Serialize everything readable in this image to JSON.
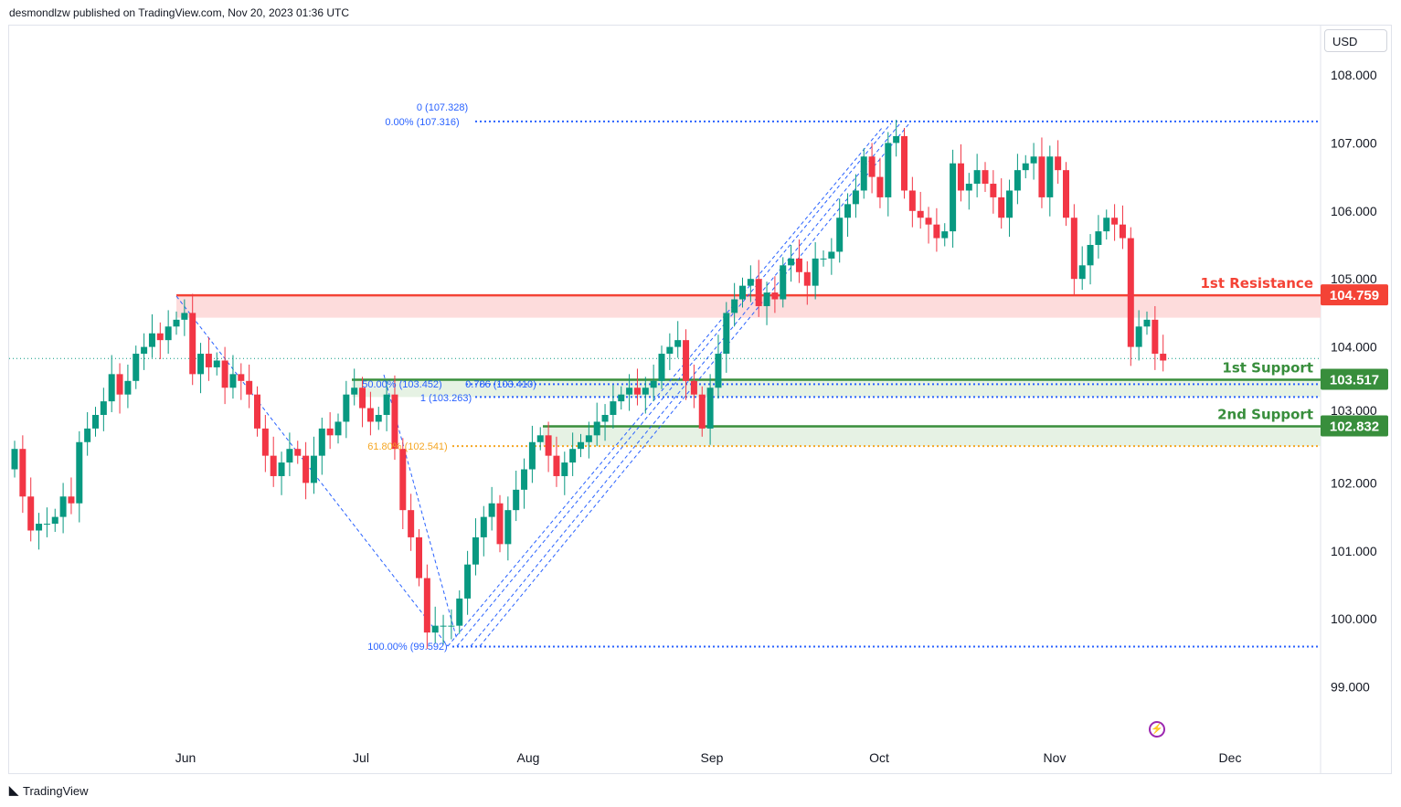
{
  "header": {
    "published": "desmondlzw published on TradingView.com, Nov 20, 2023 01:36 UTC"
  },
  "currency": "USD",
  "footer": {
    "brand": "TradingView"
  },
  "colors": {
    "up": "#089981",
    "down": "#f23645",
    "resistance": "#f44336",
    "support": "#388e3c",
    "fib": "#2962ff",
    "fib618": "#f5a623"
  },
  "chart_data": {
    "type": "candlestick",
    "title": "",
    "x_tick_labels": [
      "Jun",
      "Jul",
      "Aug",
      "Sep",
      "Oct",
      "Nov",
      "Dec"
    ],
    "y_tick_labels": [
      "108.000",
      "107.000",
      "106.000",
      "105.000",
      "104.000",
      "103.000",
      "102.000",
      "101.000",
      "100.000",
      "99.000"
    ],
    "ylim": [
      98.1,
      108.7
    ],
    "closes": [
      102.5,
      101.8,
      101.3,
      101.4,
      101.4,
      101.5,
      101.8,
      101.7,
      102.6,
      102.8,
      103.0,
      103.2,
      103.6,
      103.3,
      103.5,
      103.9,
      104.0,
      104.2,
      104.1,
      104.3,
      104.4,
      104.5,
      103.6,
      103.9,
      103.7,
      103.8,
      103.4,
      103.6,
      103.5,
      103.3,
      102.8,
      102.4,
      102.1,
      102.3,
      102.5,
      102.4,
      102.0,
      102.4,
      102.8,
      102.7,
      102.9,
      103.3,
      103.4,
      103.1,
      102.9,
      103.0,
      103.3,
      102.5,
      101.6,
      101.2,
      100.6,
      99.8,
      99.9,
      99.9,
      99.9,
      100.3,
      100.8,
      101.2,
      101.5,
      101.7,
      101.1,
      101.6,
      101.9,
      102.2,
      102.6,
      102.7,
      102.4,
      102.1,
      102.3,
      102.5,
      102.6,
      102.7,
      102.9,
      103.0,
      103.2,
      103.3,
      103.4,
      103.3,
      103.4,
      103.5,
      103.9,
      104.0,
      104.1,
      103.5,
      103.3,
      102.8,
      103.4,
      103.9,
      104.5,
      104.7,
      104.9,
      105.0,
      104.6,
      104.8,
      104.7,
      105.2,
      105.3,
      105.1,
      104.9,
      105.3,
      105.3,
      105.4,
      105.9,
      106.1,
      106.3,
      106.8,
      106.5,
      106.2,
      107.0,
      107.1,
      106.3,
      106.0,
      105.9,
      105.8,
      105.6,
      105.7,
      106.7,
      106.3,
      106.4,
      106.6,
      106.4,
      106.2,
      105.9,
      106.3,
      106.6,
      106.7,
      106.8,
      106.2,
      106.8,
      106.6,
      105.9,
      105.0,
      105.2,
      105.5,
      105.7,
      105.9,
      105.8,
      105.6,
      104.0,
      104.3,
      104.4,
      103.9,
      103.8
    ],
    "current_price": 103.83,
    "levels": [
      {
        "label": "1st Resistance",
        "price": 104.759,
        "price_label": "104.759",
        "zone_to": 104.43,
        "kind": "resistance"
      },
      {
        "label": "1st Support",
        "price": 103.517,
        "price_label": "103.517",
        "zone_to": 103.263,
        "kind": "support"
      },
      {
        "label": "2nd Support",
        "price": 102.832,
        "price_label": "102.832",
        "zone_to": 102.541,
        "kind": "support"
      }
    ],
    "fib_labels": [
      {
        "text": "0 (107.328)",
        "price": 107.328
      },
      {
        "text": "0.00% (107.316)",
        "price": 107.316
      },
      {
        "text": "50.00% (103.452)",
        "price": 103.452
      },
      {
        "text": "0.786 (103.410)",
        "price": 103.41
      },
      {
        "text": "1 (103.263)",
        "price": 103.263
      },
      {
        "text": "61.80% (102.541)",
        "price": 102.541
      },
      {
        "text": "100.00% (99.592)",
        "price": 99.592
      }
    ]
  }
}
